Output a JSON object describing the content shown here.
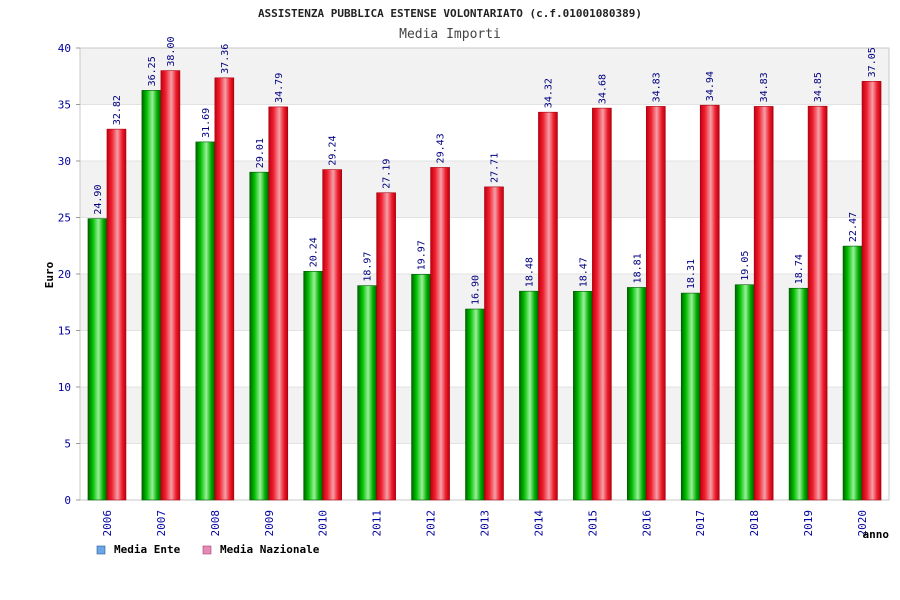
{
  "chart_data": {
    "type": "bar",
    "title": "ASSISTENZA PUBBLICA ESTENSE VOLONTARIATO (c.f.01001080389)",
    "subtitle": "Media Importi",
    "xlabel": "anno",
    "ylabel": "Euro",
    "ylim": [
      0,
      40
    ],
    "yticks": [
      "0",
      "5",
      "10",
      "15",
      "20",
      "25",
      "30",
      "35",
      "40"
    ],
    "grid": "horizontal bands",
    "legend_position": "bottom-left",
    "categories": [
      "2006",
      "2007",
      "2008",
      "2009",
      "2010",
      "2011",
      "2012",
      "2013",
      "2014",
      "2015",
      "2016",
      "2017",
      "2018",
      "2019",
      "2020"
    ],
    "series": [
      {
        "name": "Media Ente",
        "color": "#00b400",
        "legend_color": "#6aa6e8",
        "values": [
          24.9,
          36.25,
          31.69,
          29.01,
          20.24,
          18.97,
          19.97,
          16.9,
          18.48,
          18.47,
          18.81,
          18.31,
          19.05,
          18.74,
          22.47
        ],
        "labels": [
          "24.90",
          "36.25",
          "31.69",
          "29.01",
          "20.24",
          "18.97",
          "19.97",
          "16.90",
          "18.48",
          "18.47",
          "18.81",
          "18.31",
          "19.05",
          "18.74",
          "22.47"
        ]
      },
      {
        "name": "Media Nazionale",
        "color": "#e8162a",
        "legend_color": "#e48ab4",
        "values": [
          32.82,
          38.0,
          37.36,
          34.79,
          29.24,
          27.19,
          29.43,
          27.71,
          34.32,
          34.68,
          34.83,
          34.94,
          34.83,
          34.85,
          37.05
        ],
        "labels": [
          "32.82",
          "38.00",
          "37.36",
          "34.79",
          "29.24",
          "27.19",
          "29.43",
          "27.71",
          "34.32",
          "34.68",
          "34.83",
          "34.94",
          "34.83",
          "34.85",
          "37.05"
        ]
      }
    ]
  }
}
